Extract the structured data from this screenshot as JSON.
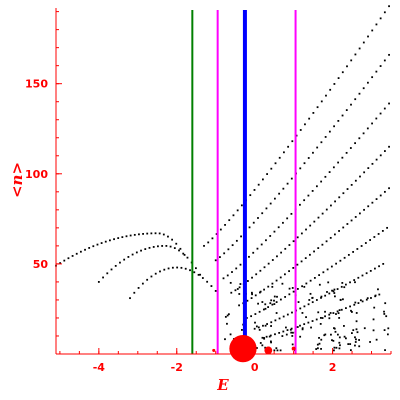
{
  "chart_data": {
    "type": "scatter",
    "xlabel": "E",
    "ylabel": "<n>",
    "xlim": [
      -5.1,
      3.5
    ],
    "ylim": [
      0,
      192
    ],
    "xticks": [
      -4,
      -2,
      0,
      2
    ],
    "yticks": [
      50,
      100,
      150
    ],
    "xtick_labels": [
      "-4",
      "-2",
      "0",
      "2"
    ],
    "ytick_labels": [
      "50",
      "100",
      "150"
    ],
    "grid": false,
    "colors": {
      "axis": "#ff0000",
      "points": "#000000",
      "green_line": "#008000",
      "magenta_line": "#ff00ff",
      "blue_line": "#0000ff",
      "red_blob": "#ff0000"
    },
    "vertical_lines": [
      {
        "name": "green",
        "x": -1.6,
        "color": "#008000",
        "width": 2
      },
      {
        "name": "magenta-left",
        "x": -0.95,
        "color": "#ff00ff",
        "width": 2
      },
      {
        "name": "blue",
        "x": -0.25,
        "color": "#0000ff",
        "width": 4
      },
      {
        "name": "magenta-right",
        "x": 1.05,
        "color": "#ff00ff",
        "width": 2
      }
    ],
    "curves": [
      {
        "name": "band-0",
        "type": "arc",
        "x0": -5.1,
        "x1": -1.8,
        "peak_x": -2.5,
        "peak_y": 67,
        "y0": 49,
        "y1": 55
      },
      {
        "name": "band-1",
        "type": "arc",
        "x0": -4.0,
        "x1": -1.4,
        "peak_x": -2.3,
        "peak_y": 60,
        "y0": 40,
        "y1": 44
      },
      {
        "name": "band-2",
        "type": "arc",
        "x0": -3.2,
        "x1": -1.0,
        "peak_x": -2.0,
        "peak_y": 48,
        "y0": 31,
        "y1": 35
      },
      {
        "name": "band-3",
        "type": "rising",
        "x0": -1.3,
        "x1": 3.45,
        "y0": 60,
        "y1": 193
      },
      {
        "name": "band-4",
        "type": "rising",
        "x0": -1.0,
        "x1": 3.45,
        "y0": 52,
        "y1": 166
      },
      {
        "name": "band-5",
        "type": "rising",
        "x0": -0.8,
        "x1": 3.45,
        "y0": 42,
        "y1": 139
      },
      {
        "name": "band-6",
        "type": "rising",
        "x0": -0.6,
        "x1": 3.45,
        "y0": 34,
        "y1": 115
      },
      {
        "name": "band-7",
        "type": "rising",
        "x0": -0.4,
        "x1": 3.45,
        "y0": 27,
        "y1": 92
      },
      {
        "name": "band-8",
        "type": "rising",
        "x0": -0.2,
        "x1": 3.4,
        "y0": 20,
        "y1": 70
      },
      {
        "name": "band-9",
        "type": "rising",
        "x0": 0.0,
        "x1": 3.3,
        "y0": 14,
        "y1": 50
      },
      {
        "name": "band-10",
        "type": "rising",
        "x0": 0.2,
        "x1": 3.2,
        "y0": 9,
        "y1": 33
      }
    ],
    "scatter_cloud": {
      "x0": -0.8,
      "x1": 3.45,
      "y0": 2,
      "y1": 40,
      "count": 170
    },
    "red_blobs": [
      {
        "x": -0.3,
        "y": 3,
        "r": 0.35
      },
      {
        "x": 0.35,
        "y": 2,
        "r": 0.1
      },
      {
        "x": 1.0,
        "y": 3,
        "r": 0.05
      },
      {
        "x": -1.05,
        "y": 2,
        "r": 0.04
      }
    ]
  }
}
